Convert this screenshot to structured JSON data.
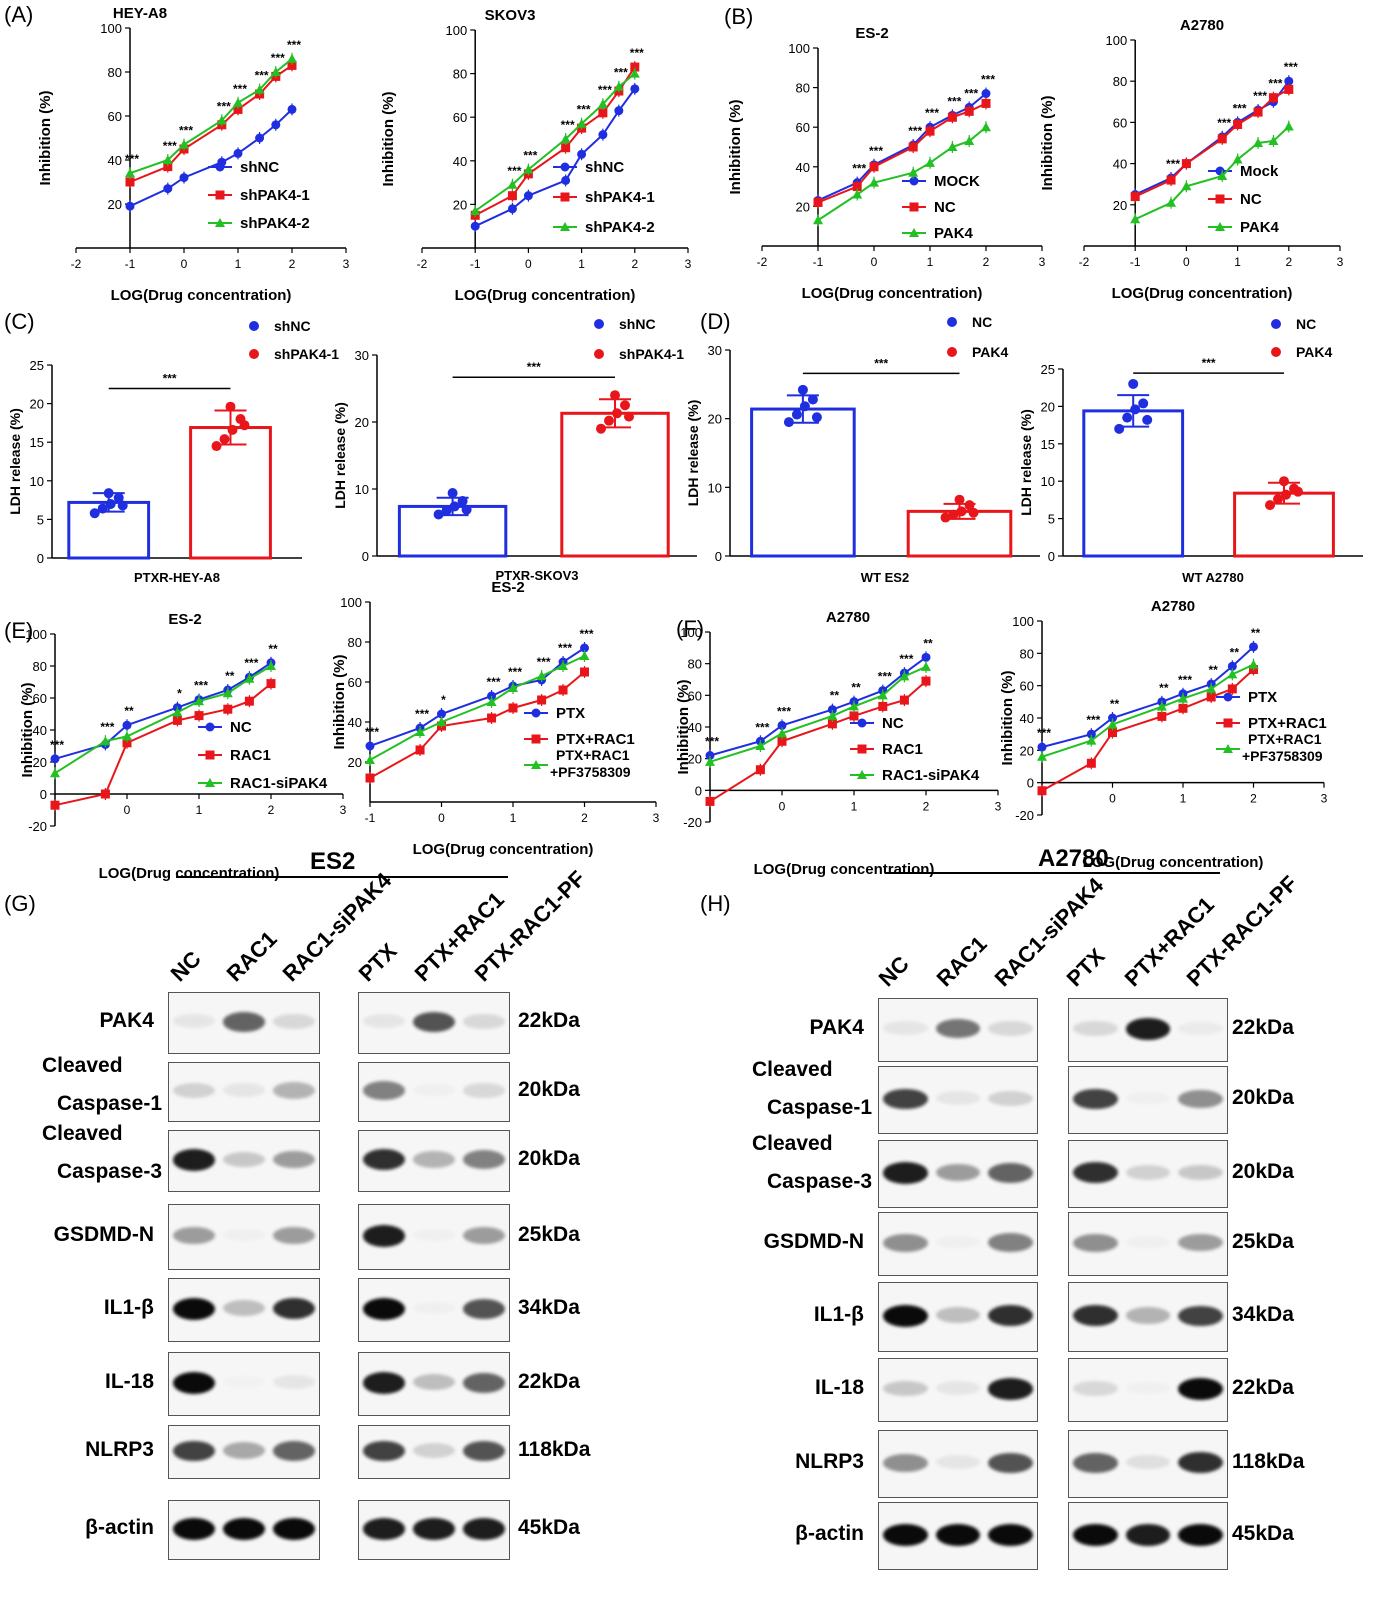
{
  "panel_letters": {
    "A": "(A)",
    "B": "(B)",
    "C": "(C)",
    "D": "(D)",
    "E": "(E)",
    "F": "(F)",
    "G": "(G)",
    "H": "(H)"
  },
  "colors": {
    "blue": "#1f2fe0",
    "red": "#e8161b",
    "green": "#22c022",
    "black": "#000000"
  },
  "chart_data": [
    {
      "id": "A1",
      "type": "line",
      "title": "HEY-A8",
      "xlabel": "LOG(Drug concentration)",
      "ylabel": "Inhibition (%)",
      "xlim": [
        -2,
        3
      ],
      "ylim": [
        0,
        100
      ],
      "xticks": [
        -2,
        -1,
        0,
        1,
        2,
        3
      ],
      "yticks": [
        20,
        40,
        60,
        80,
        100
      ],
      "x": [
        -1,
        -0.3,
        0,
        0.7,
        1,
        1.4,
        1.7,
        2
      ],
      "stars": [
        "***",
        "***",
        "***",
        "***",
        "***",
        "***",
        "***",
        "***"
      ],
      "series": [
        {
          "name": "shNC",
          "color": "blue",
          "values": [
            19,
            27,
            32,
            39,
            43,
            50,
            56,
            63
          ]
        },
        {
          "name": "shPAK4-1",
          "color": "red",
          "values": [
            30,
            37,
            45,
            56,
            63,
            70,
            78,
            83
          ]
        },
        {
          "name": "shPAK4-2",
          "color": "green",
          "values": [
            34,
            40,
            47,
            58,
            66,
            72,
            80,
            86
          ]
        }
      ]
    },
    {
      "id": "A2",
      "type": "line",
      "title": "SKOV3",
      "xlabel": "LOG(Drug concentration)",
      "ylabel": "Inhibition (%)",
      "xlim": [
        -2,
        3
      ],
      "ylim": [
        0,
        100
      ],
      "xticks": [
        -2,
        -1,
        0,
        1,
        2,
        3
      ],
      "yticks": [
        20,
        40,
        60,
        80,
        100
      ],
      "x": [
        -1,
        -0.3,
        0,
        0.7,
        1,
        1.4,
        1.7,
        2
      ],
      "stars": [
        "",
        "***",
        "***",
        "***",
        "***",
        "***",
        "***",
        "***"
      ],
      "series": [
        {
          "name": "shNC",
          "color": "blue",
          "values": [
            10,
            18,
            24,
            31,
            43,
            52,
            63,
            73
          ]
        },
        {
          "name": "shPAK4-1",
          "color": "red",
          "values": [
            15,
            24,
            34,
            46,
            55,
            62,
            72,
            83
          ]
        },
        {
          "name": "shPAK4-2",
          "color": "green",
          "values": [
            17,
            29,
            36,
            50,
            57,
            66,
            74,
            80
          ]
        }
      ]
    },
    {
      "id": "B1",
      "type": "line",
      "title": "ES-2",
      "xlabel": "LOG(Drug concentration)",
      "ylabel": "Inhibition (%)",
      "xlim": [
        -2,
        3
      ],
      "ylim": [
        0,
        100
      ],
      "xticks": [
        -2,
        -1,
        0,
        1,
        2,
        3
      ],
      "yticks": [
        20,
        40,
        60,
        80,
        100
      ],
      "x": [
        -1,
        -0.3,
        0,
        0.7,
        1,
        1.4,
        1.7,
        2
      ],
      "stars": [
        "",
        "***",
        "***",
        "***",
        "***",
        "***",
        "***",
        "***"
      ],
      "series": [
        {
          "name": "MOCK",
          "color": "blue",
          "values": [
            23,
            32,
            41,
            51,
            60,
            66,
            70,
            77
          ]
        },
        {
          "name": "NC",
          "color": "red",
          "values": [
            22,
            30,
            40,
            50,
            58,
            65,
            68,
            72
          ]
        },
        {
          "name": "PAK4",
          "color": "green",
          "values": [
            13,
            26,
            32,
            37,
            42,
            50,
            53,
            60
          ]
        }
      ]
    },
    {
      "id": "B2",
      "type": "line",
      "title": "A2780",
      "xlabel": "LOG(Drug concentration)",
      "ylabel": "Inhibition (%)",
      "xlim": [
        -2,
        3
      ],
      "ylim": [
        0,
        100
      ],
      "xticks": [
        -2,
        -1,
        0,
        1,
        2,
        3
      ],
      "yticks": [
        20,
        40,
        60,
        80,
        100
      ],
      "x": [
        -1,
        -0.3,
        0,
        0.7,
        1,
        1.4,
        1.7,
        2
      ],
      "stars": [
        "",
        "***",
        "",
        "***",
        "***",
        "***",
        "***",
        "***"
      ],
      "series": [
        {
          "name": "Mock",
          "color": "blue",
          "values": [
            25,
            33,
            40,
            53,
            60,
            66,
            70,
            80
          ]
        },
        {
          "name": "NC",
          "color": "red",
          "values": [
            24,
            32,
            40,
            52,
            59,
            65,
            72,
            76
          ]
        },
        {
          "name": "PAK4",
          "color": "green",
          "values": [
            13,
            21,
            29,
            34,
            42,
            50,
            51,
            58
          ]
        }
      ]
    },
    {
      "id": "C1",
      "type": "bar",
      "xlabel": "PTXR-HEY-A8",
      "ylabel": "LDH release (%)",
      "ylim": [
        0,
        25
      ],
      "yticks": [
        0,
        5,
        10,
        15,
        20,
        25
      ],
      "sig": "***",
      "series": [
        {
          "name": "shNC",
          "color": "blue",
          "mean": 7.2,
          "sd": 1.2,
          "points": [
            5.8,
            6.4,
            7.0,
            7.8,
            8.4,
            6.8
          ]
        },
        {
          "name": "shPAK4-1",
          "color": "red",
          "mean": 16.9,
          "sd": 2.2,
          "points": [
            14.5,
            15.4,
            16.6,
            18.0,
            19.6,
            17.2
          ]
        }
      ]
    },
    {
      "id": "C2",
      "type": "bar",
      "xlabel": "PTXR-SKOV3",
      "ylabel": "LDH release (%)",
      "ylim": [
        0,
        30
      ],
      "yticks": [
        0,
        10,
        20,
        30
      ],
      "sig": "***",
      "series": [
        {
          "name": "shNC",
          "color": "blue",
          "mean": 7.4,
          "sd": 1.3,
          "points": [
            6.2,
            6.8,
            7.4,
            8.2,
            9.4,
            6.9
          ]
        },
        {
          "name": "shPAK4-1",
          "color": "red",
          "mean": 21.3,
          "sd": 2.1,
          "points": [
            19.0,
            20.2,
            21.3,
            22.5,
            24.0,
            20.8
          ]
        }
      ]
    },
    {
      "id": "D1",
      "type": "bar",
      "xlabel": "WT ES2",
      "ylabel": "LDH release  (%)",
      "ylim": [
        0,
        30
      ],
      "yticks": [
        0,
        10,
        20,
        30
      ],
      "sig": "***",
      "series": [
        {
          "name": "NC",
          "color": "blue",
          "mean": 21.4,
          "sd": 2.0,
          "points": [
            19.5,
            20.6,
            21.8,
            22.8,
            24.2,
            20.2
          ]
        },
        {
          "name": "PAK4",
          "color": "red",
          "mean": 6.5,
          "sd": 1.1,
          "points": [
            5.6,
            6.0,
            6.5,
            7.4,
            8.2,
            6.3
          ]
        }
      ]
    },
    {
      "id": "D2",
      "type": "bar",
      "xlabel": "WT A2780",
      "ylabel": "LDH release  (%)",
      "ylim": [
        0,
        25
      ],
      "yticks": [
        0,
        5,
        10,
        15,
        20,
        25
      ],
      "sig": "***",
      "series": [
        {
          "name": "NC",
          "color": "blue",
          "mean": 19.4,
          "sd": 2.1,
          "points": [
            17.0,
            18.5,
            19.6,
            20.4,
            23.0,
            18.2
          ]
        },
        {
          "name": "PAK4",
          "color": "red",
          "mean": 8.4,
          "sd": 1.4,
          "points": [
            6.8,
            7.6,
            8.2,
            9.0,
            10.0,
            8.6
          ]
        }
      ]
    },
    {
      "id": "E1",
      "type": "line",
      "title": "ES-2",
      "xlabel": "LOG(Drug concentration)",
      "ylabel": "Inhibition (%)",
      "xlim": [
        -1,
        3
      ],
      "ylim": [
        -20,
        100
      ],
      "xticks": [
        0,
        1,
        2,
        3
      ],
      "yticks": [
        -20,
        0,
        20,
        40,
        60,
        80,
        100
      ],
      "x": [
        -1,
        -0.3,
        0,
        0.7,
        1,
        1.4,
        1.7,
        2
      ],
      "stars": [
        "***",
        "***",
        "**",
        "*",
        "***",
        "**",
        "***",
        "**"
      ],
      "series": [
        {
          "name": "NC",
          "color": "blue",
          "values": [
            22,
            31,
            43,
            54,
            59,
            65,
            73,
            82
          ]
        },
        {
          "name": "RAC1",
          "color": "red",
          "values": [
            -7,
            0,
            32,
            46,
            49,
            53,
            58,
            69
          ]
        },
        {
          "name": "RAC1-siPAK4",
          "color": "green",
          "values": [
            13,
            33,
            36,
            51,
            58,
            63,
            72,
            80
          ]
        }
      ]
    },
    {
      "id": "E2",
      "type": "line",
      "title": "ES-2",
      "xlabel": "LOG(Drug concentration)",
      "ylabel": "Inhibition (%)",
      "xlim": [
        -1,
        3
      ],
      "ylim": [
        0,
        100
      ],
      "xticks": [
        -1,
        0,
        1,
        2,
        3
      ],
      "yticks": [
        20,
        40,
        60,
        80,
        100
      ],
      "x": [
        -1,
        -0.3,
        0,
        0.7,
        1,
        1.4,
        1.7,
        2
      ],
      "stars": [
        "***",
        "***",
        "*",
        "***",
        "***",
        "***",
        "***",
        "***"
      ],
      "series": [
        {
          "name": "PTX",
          "color": "blue",
          "values": [
            28,
            37,
            44,
            53,
            58,
            61,
            70,
            77
          ]
        },
        {
          "name": "PTX+RAC1",
          "color": "red",
          "values": [
            12,
            26,
            38,
            42,
            47,
            51,
            56,
            65
          ]
        },
        {
          "name": "PTX+RAC1 +PF3758309",
          "color": "green",
          "values": [
            21,
            35,
            40,
            50,
            57,
            63,
            68,
            73
          ]
        }
      ]
    },
    {
      "id": "F1",
      "type": "line",
      "title": "A2780",
      "xlabel": "LOG(Drug concentration)",
      "ylabel": "Inhibition (%)",
      "xlim": [
        -1,
        3
      ],
      "ylim": [
        -20,
        100
      ],
      "xticks": [
        0,
        1,
        2,
        3
      ],
      "yticks": [
        -20,
        0,
        20,
        40,
        60,
        80,
        100
      ],
      "x": [
        -1,
        -0.3,
        0,
        0.7,
        1,
        1.4,
        1.7,
        2
      ],
      "stars": [
        "***",
        "***",
        "***",
        "**",
        "**",
        "***",
        "***",
        "**"
      ],
      "series": [
        {
          "name": "NC",
          "color": "blue",
          "values": [
            22,
            31,
            41,
            51,
            56,
            63,
            74,
            84
          ]
        },
        {
          "name": "RAC1",
          "color": "red",
          "values": [
            -7,
            13,
            31,
            42,
            47,
            53,
            57,
            69
          ]
        },
        {
          "name": "RAC1-siPAK4",
          "color": "green",
          "values": [
            18,
            28,
            36,
            47,
            53,
            60,
            72,
            78
          ]
        }
      ]
    },
    {
      "id": "F2",
      "type": "line",
      "title": "A2780",
      "xlabel": "LOG(Drug concentration)",
      "ylabel": "Inhibition (%)",
      "xlim": [
        -1,
        3
      ],
      "ylim": [
        -20,
        100
      ],
      "xticks": [
        0,
        1,
        2,
        3
      ],
      "yticks": [
        -20,
        0,
        20,
        40,
        60,
        80,
        100
      ],
      "x": [
        -1,
        -0.3,
        0,
        0.7,
        1,
        1.4,
        1.7,
        2
      ],
      "stars": [
        "***",
        "***",
        "**",
        "**",
        "***",
        "**",
        "**",
        "**"
      ],
      "series": [
        {
          "name": "PTX",
          "color": "blue",
          "values": [
            22,
            30,
            40,
            50,
            55,
            61,
            72,
            84
          ]
        },
        {
          "name": "PTX+RAC1",
          "color": "red",
          "values": [
            -5,
            12,
            31,
            41,
            46,
            53,
            58,
            70
          ]
        },
        {
          "name": "PTX+RAC1 +PF3758309",
          "color": "green",
          "values": [
            16,
            26,
            36,
            47,
            52,
            58,
            67,
            73
          ]
        }
      ]
    }
  ],
  "western": [
    {
      "id": "G",
      "title": "ES2",
      "lanes_left": [
        "NC",
        "RAC1",
        "RAC1-siPAK4"
      ],
      "lanes_right": [
        "PTX",
        "PTX+RAC1",
        "PTX-RAC1-PF"
      ],
      "proteins": [
        {
          "label1": "PAK4",
          "label2": "",
          "kda": "22kDa",
          "intensity": [
            0.15,
            0.75,
            0.25,
            0.15,
            0.8,
            0.25
          ]
        },
        {
          "label1": "Cleaved",
          "label2": "Caspase-1",
          "kda": "20kDa",
          "intensity": [
            0.3,
            0.15,
            0.45,
            0.65,
            0.05,
            0.25
          ]
        },
        {
          "label1": "Cleaved",
          "label2": "Caspase-3",
          "kda": "20kDa",
          "intensity": [
            0.95,
            0.35,
            0.55,
            0.9,
            0.45,
            0.65
          ]
        },
        {
          "label1": "GSDMD-N",
          "label2": "",
          "kda": "25kDa",
          "intensity": [
            0.55,
            0.05,
            0.55,
            0.95,
            0.05,
            0.55
          ]
        },
        {
          "label1": "IL1-β",
          "label2": "",
          "kda": "34kDa",
          "intensity": [
            1.0,
            0.4,
            0.9,
            1.0,
            0.05,
            0.8
          ]
        },
        {
          "label1": "IL-18",
          "label2": "",
          "kda": "22kDa",
          "intensity": [
            1.0,
            0.02,
            0.15,
            0.95,
            0.4,
            0.75
          ]
        },
        {
          "label1": "NLRP3",
          "label2": "",
          "kda": "118kDa",
          "intensity": [
            0.85,
            0.5,
            0.75,
            0.85,
            0.3,
            0.8
          ]
        },
        {
          "label1": "β-actin",
          "label2": "",
          "kda": "45kDa",
          "intensity": [
            1.0,
            1.0,
            1.0,
            0.95,
            0.95,
            0.95
          ]
        }
      ]
    },
    {
      "id": "H",
      "title": "A2780",
      "lanes_left": [
        "NC",
        "RAC1",
        "RAC1-siPAK4"
      ],
      "lanes_right": [
        "PTX",
        "PTX+RAC1",
        "PTX-RAC1-PF"
      ],
      "proteins": [
        {
          "label1": "PAK4",
          "label2": "",
          "kda": "22kDa",
          "intensity": [
            0.15,
            0.7,
            0.25,
            0.25,
            0.95,
            0.1
          ]
        },
        {
          "label1": "Cleaved",
          "label2": "Caspase-1",
          "kda": "20kDa",
          "intensity": [
            0.85,
            0.15,
            0.3,
            0.85,
            0.05,
            0.6
          ]
        },
        {
          "label1": "Cleaved",
          "label2": "Caspase-3",
          "kda": "20kDa",
          "intensity": [
            0.95,
            0.55,
            0.75,
            0.9,
            0.3,
            0.35
          ]
        },
        {
          "label1": "GSDMD-N",
          "label2": "",
          "kda": "25kDa",
          "intensity": [
            0.6,
            0.05,
            0.65,
            0.6,
            0.05,
            0.55
          ]
        },
        {
          "label1": "IL1-β",
          "label2": "",
          "kda": "34kDa",
          "intensity": [
            1.0,
            0.4,
            0.9,
            0.9,
            0.45,
            0.85
          ]
        },
        {
          "label1": "IL-18",
          "label2": "",
          "kda": "22kDa",
          "intensity": [
            0.35,
            0.15,
            0.95,
            0.25,
            0.05,
            1.0
          ]
        },
        {
          "label1": "NLRP3",
          "label2": "",
          "kda": "118kDa",
          "intensity": [
            0.6,
            0.15,
            0.8,
            0.75,
            0.2,
            0.9
          ]
        },
        {
          "label1": "β-actin",
          "label2": "",
          "kda": "45kDa",
          "intensity": [
            1.0,
            1.0,
            1.0,
            1.0,
            0.95,
            1.0
          ]
        }
      ]
    }
  ]
}
